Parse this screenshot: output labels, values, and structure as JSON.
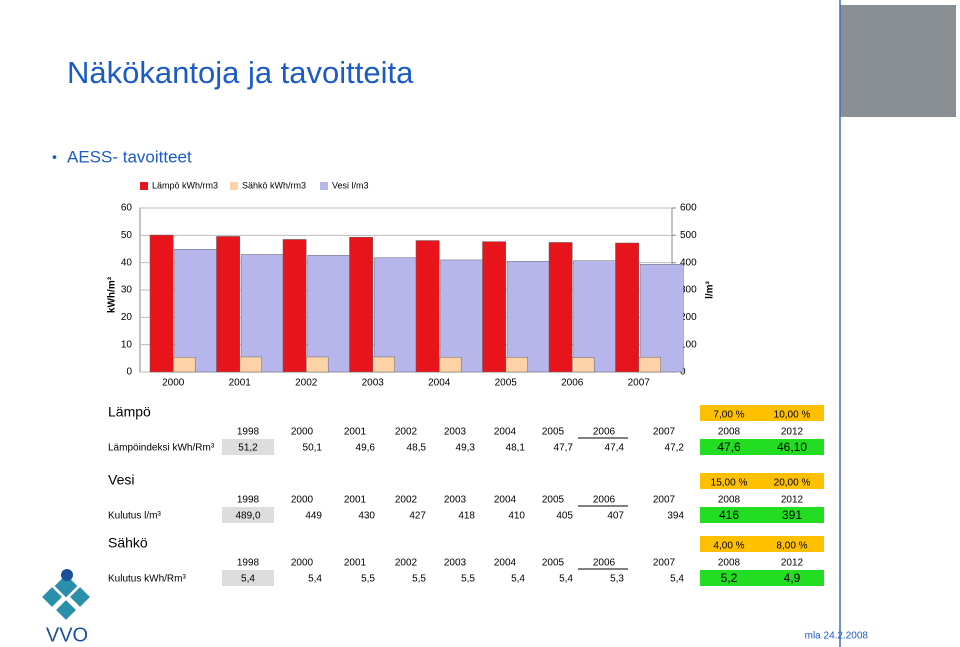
{
  "header": {
    "title": "Näkökantoja ja tavoitteita",
    "bullet": "AESS- tavoitteet"
  },
  "chart_data": {
    "type": "bar",
    "y_label": "kWh/m³",
    "y2_label": "l/m³",
    "categories": [
      "2000",
      "2001",
      "2002",
      "2003",
      "2004",
      "2005",
      "2006",
      "2007"
    ],
    "series": [
      {
        "name": "Lämpö kWh/rm3",
        "color": "#e8141c",
        "values": [
          50.1,
          49.6,
          48.5,
          49.3,
          48.1,
          47.7,
          47.4,
          47.2
        ]
      },
      {
        "name": "Sähkö kWh/rm3",
        "color": "#fcd2a6",
        "values": [
          5.4,
          5.5,
          5.5,
          5.5,
          5.4,
          5.4,
          5.3,
          5.4
        ]
      },
      {
        "name": "Vesi l/m3",
        "color": "#b6b6ec",
        "axis": "y2",
        "values": [
          449,
          430,
          427,
          418,
          410,
          405,
          407,
          394
        ]
      }
    ],
    "ylim": [
      0,
      60
    ],
    "yticks": [
      0,
      10,
      20,
      30,
      40,
      50,
      60
    ],
    "y2lim": [
      0,
      600
    ],
    "y2ticks": [
      0,
      100,
      200,
      300,
      400,
      500,
      600
    ]
  },
  "tables": [
    {
      "title": "Lämpö",
      "targets": [
        "7,00 %",
        "10,00 %"
      ],
      "columns": [
        "1998",
        "2000",
        "2001",
        "2002",
        "2003",
        "2004",
        "2005",
        "2006",
        "2007",
        "2008",
        "2012"
      ],
      "row_label": "Lämpöindeksi kWh/Rm³",
      "values": [
        "51,2",
        "50,1",
        "49,6",
        "48,5",
        "49,3",
        "48,1",
        "47,7",
        "47,4",
        "47,2",
        "47,6",
        "46,10"
      ]
    },
    {
      "title": "Vesi",
      "targets": [
        "15,00 %",
        "20,00 %"
      ],
      "columns": [
        "1998",
        "2000",
        "2001",
        "2002",
        "2003",
        "2004",
        "2005",
        "2006",
        "2007",
        "2008",
        "2012"
      ],
      "row_label": "Kulutus l/m³",
      "values": [
        "489,0",
        "449",
        "430",
        "427",
        "418",
        "410",
        "405",
        "407",
        "394",
        "416",
        "391"
      ]
    },
    {
      "title": "Sähkö",
      "targets": [
        "4,00 %",
        "8,00 %"
      ],
      "columns": [
        "1998",
        "2000",
        "2001",
        "2002",
        "2003",
        "2004",
        "2005",
        "2006",
        "2007",
        "2008",
        "2012"
      ],
      "row_label": "Kulutus kWh/Rm³",
      "values": [
        "5,4",
        "5,4",
        "5,5",
        "5,5",
        "5,5",
        "5,4",
        "5,4",
        "5,3",
        "5,4",
        "5,2",
        "4,9"
      ]
    }
  ],
  "footer": "mla 24.2.2008",
  "logo": "VVO"
}
